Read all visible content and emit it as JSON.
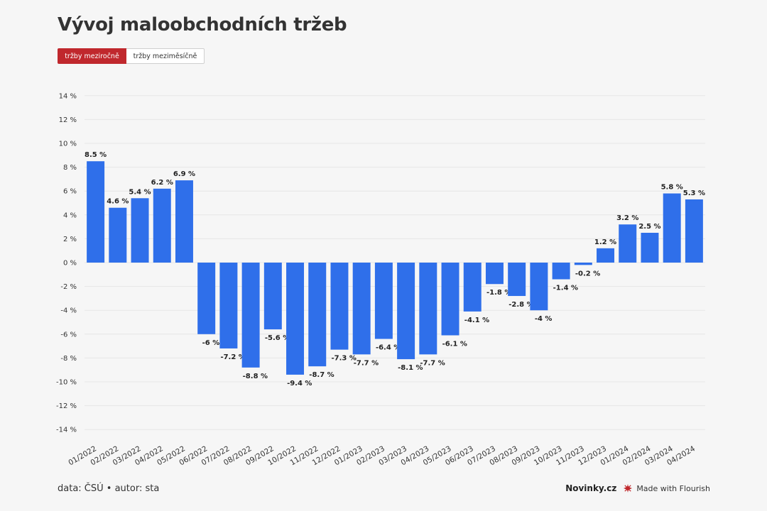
{
  "title": "Vývoj maloobchodních tržeb",
  "toggle": {
    "active_label": "tržby meziročně",
    "inactive_label": "tržby meziměsíčně"
  },
  "colors": {
    "bar": "#2f6fea",
    "accent": "#c0282d"
  },
  "chart_data": {
    "type": "bar",
    "categories": [
      "01/2022",
      "02/2022",
      "03/2022",
      "04/2022",
      "05/2022",
      "06/2022",
      "07/2022",
      "08/2022",
      "09/2022",
      "10/2022",
      "11/2022",
      "12/2022",
      "01/2023",
      "02/2023",
      "03/2023",
      "04/2023",
      "05/2023",
      "06/2023",
      "07/2023",
      "08/2023",
      "09/2023",
      "10/2023",
      "11/2023",
      "12/2023",
      "01/2024",
      "02/2024",
      "03/2024",
      "04/2024"
    ],
    "values": [
      8.5,
      4.6,
      5.4,
      6.2,
      6.9,
      -6,
      -7.2,
      -8.8,
      -5.6,
      -9.4,
      -8.7,
      -7.3,
      -7.7,
      -6.4,
      -8.1,
      -7.7,
      -6.1,
      -4.1,
      -1.8,
      -2.8,
      -4,
      -1.4,
      -0.2,
      1.2,
      3.2,
      2.5,
      5.8,
      5.3
    ],
    "data_labels": [
      "8.5 %",
      "4.6 %",
      "5.4 %",
      "6.2 %",
      "6.9 %",
      "-6 %",
      "-7.2 %",
      "-8.8 %",
      "-5.6 %",
      "-9.4 %",
      "-8.7 %",
      "-7.3 %",
      "-7.7 %",
      "-6.4 %",
      "-8.1 %",
      "-7.7 %",
      "-6.1 %",
      "-4.1 %",
      "-1.8 %",
      "-2.8 %",
      "-4 %",
      "-1.4 %",
      "-0.2 %",
      "1.2 %",
      "3.2 %",
      "2.5 %",
      "5.8 %",
      "5.3 %"
    ],
    "ylim": [
      -15,
      15
    ],
    "yticks": [
      14,
      12,
      10,
      8,
      6,
      4,
      2,
      0,
      -2,
      -4,
      -6,
      -8,
      -10,
      -12,
      -14
    ],
    "ytick_labels": [
      "14 %",
      "12 %",
      "10 %",
      "8 %",
      "6 %",
      "4 %",
      "2 %",
      "0 %",
      "-2 %",
      "-4 %",
      "-6 %",
      "-8 %",
      "-10 %",
      "-12 %",
      "-14 %"
    ],
    "grid": true
  },
  "footer": {
    "source": "data: ČSÚ • autor: sta",
    "brand": "Novinky.cz",
    "made_with": "Made with Flourish"
  }
}
